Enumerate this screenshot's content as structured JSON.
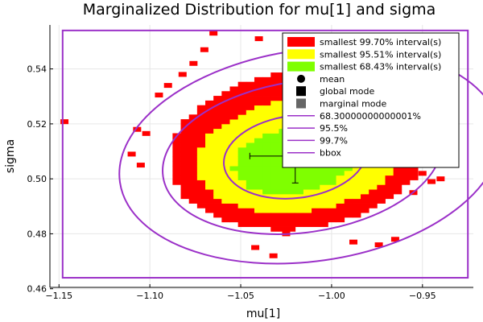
{
  "chart_data": {
    "type": "heatmap",
    "title": "Marginalized Distribution for mu[1] and sigma",
    "xlabel": "mu[1]",
    "ylabel": "sigma",
    "xlim": [
      -1.155,
      -0.922
    ],
    "ylim": [
      0.4605,
      0.556
    ],
    "xticks": [
      -1.15,
      -1.1,
      -1.05,
      -1.0,
      -0.95
    ],
    "xtick_labels": [
      "−1.15",
      "−1.10",
      "−1.05",
      "−1.00",
      "−0.95"
    ],
    "yticks": [
      0.46,
      0.48,
      0.5,
      0.52,
      0.54
    ],
    "ytick_labels": [
      "0.46",
      "0.48",
      "0.50",
      "0.52",
      "0.54"
    ],
    "grid": true,
    "legend_position": "top-right",
    "colors": {
      "int997": "#ff0000",
      "int955": "#ffff00",
      "int684": "#7fff00",
      "mean": "#000000",
      "global_mode": "#000000",
      "marginal_mode": "#666666",
      "contour": "#9b30c8",
      "bbox": "#9b30c8"
    },
    "legend": [
      {
        "key": "int997",
        "label": "smallest 99.70% interval(s)",
        "marker": "rect"
      },
      {
        "key": "int955",
        "label": "smallest 95.51% interval(s)",
        "marker": "rect"
      },
      {
        "key": "int684",
        "label": "smallest 68.43% interval(s)",
        "marker": "rect"
      },
      {
        "key": "mean",
        "label": "mean",
        "marker": "circle"
      },
      {
        "key": "global_mode",
        "label": "global mode",
        "marker": "square"
      },
      {
        "key": "marginal_mode",
        "label": "marginal mode",
        "marker": "square"
      },
      {
        "key": "contour",
        "label": "68.30000000000001%",
        "marker": "line"
      },
      {
        "key": "contour",
        "label": "95.5%",
        "marker": "line"
      },
      {
        "key": "contour",
        "label": "99.7%",
        "marker": "line"
      },
      {
        "key": "bbox",
        "label": "bbox",
        "marker": "line"
      }
    ],
    "regions": [
      {
        "name": "smallest 99.70% interval(s)",
        "center": [
          -1.018,
          0.5105
        ],
        "radii": [
          0.072,
          0.0285
        ],
        "rotation_deg": -7
      },
      {
        "name": "smallest 95.51% interval(s)",
        "center": [
          -1.018,
          0.5085
        ],
        "radii": [
          0.057,
          0.0205
        ],
        "rotation_deg": -7
      },
      {
        "name": "smallest 68.43% interval(s)",
        "center": [
          -1.021,
          0.5065
        ],
        "radii": [
          0.033,
          0.0118
        ],
        "rotation_deg": -7
      }
    ],
    "ellipses": [
      {
        "name": "68.30000000000001%",
        "center": [
          -1.02,
          0.508
        ],
        "radii": [
          0.0395,
          0.015
        ],
        "rotation_deg": -7
      },
      {
        "name": "95.5%",
        "center": [
          -1.016,
          0.508
        ],
        "radii": [
          0.0775,
          0.0275
        ],
        "rotation_deg": -8
      },
      {
        "name": "99.7%",
        "center": [
          -1.012,
          0.5085
        ],
        "radii": [
          0.1055,
          0.0385
        ],
        "rotation_deg": -8
      }
    ],
    "outlier_points": [
      [
        -1.147,
        0.5208
      ],
      [
        -1.107,
        0.518
      ],
      [
        -1.102,
        0.5165
      ],
      [
        -1.11,
        0.509
      ],
      [
        -1.105,
        0.505
      ],
      [
        -1.095,
        0.5305
      ],
      [
        -1.09,
        0.534
      ],
      [
        -1.082,
        0.538
      ],
      [
        -1.076,
        0.542
      ],
      [
        -1.07,
        0.547
      ],
      [
        -1.065,
        0.553
      ],
      [
        -1.04,
        0.551
      ],
      [
        -1.02,
        0.5485
      ],
      [
        -1.01,
        0.5455
      ],
      [
        -0.99,
        0.546
      ],
      [
        -1.042,
        0.475
      ],
      [
        -1.032,
        0.472
      ],
      [
        -1.025,
        0.48
      ],
      [
        -0.988,
        0.477
      ],
      [
        -0.974,
        0.476
      ],
      [
        -0.965,
        0.478
      ],
      [
        -0.955,
        0.495
      ],
      [
        -0.95,
        0.502
      ],
      [
        -0.945,
        0.499
      ],
      [
        -0.94,
        0.5
      ]
    ],
    "mean": {
      "mu": -1.02,
      "sigma": 0.5083,
      "err_mu": [
        -1.045,
        -0.995
      ],
      "err_sigma": [
        0.4985,
        0.517
      ]
    },
    "bbox": {
      "x": [
        -1.148,
        -0.925
      ],
      "y": [
        0.464,
        0.554
      ]
    }
  }
}
